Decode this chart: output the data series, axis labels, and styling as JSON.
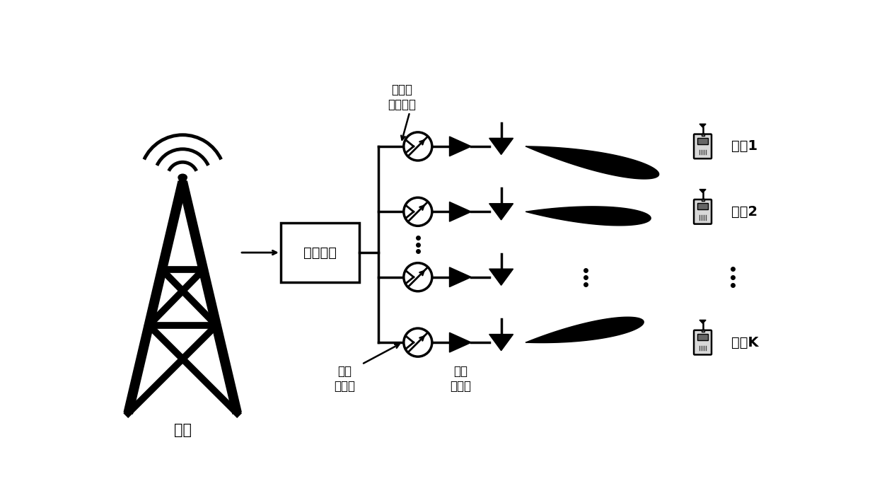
{
  "background_color": "#ffffff",
  "label_base_station": "基站",
  "label_rf_chain": "射频链路",
  "label_antenna_weight": "天线权\n系数向量",
  "label_phase_converter": "相位\n转换器",
  "label_power_amp": "功率\n放大器",
  "label_user1": "用户1",
  "label_user2": "用户2",
  "label_userK": "用户K",
  "figsize": [
    12.4,
    7.04
  ],
  "dpi": 100
}
